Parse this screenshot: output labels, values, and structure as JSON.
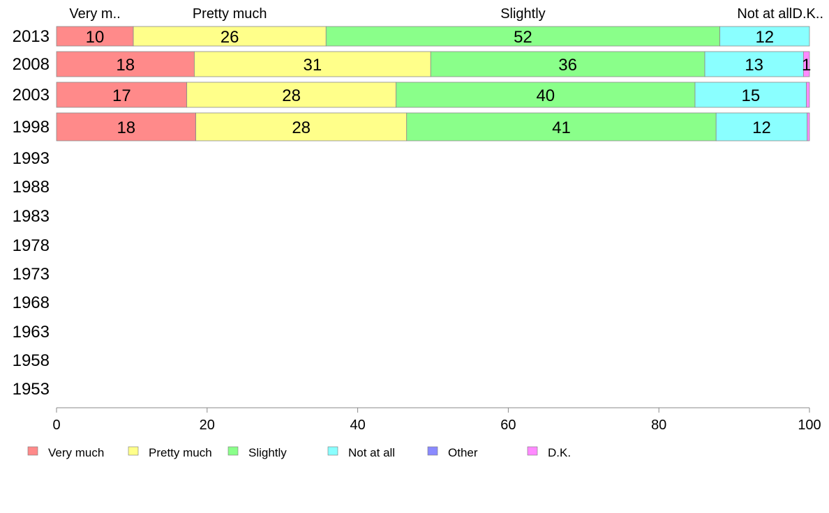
{
  "chart_data": {
    "type": "bar",
    "orientation": "horizontal",
    "stacked": true,
    "categories": [
      "2013",
      "2008",
      "2003",
      "1998",
      "1993",
      "1988",
      "1983",
      "1978",
      "1973",
      "1968",
      "1963",
      "1958",
      "1953"
    ],
    "series": [
      {
        "name": "Very much",
        "top_label": "Very m..",
        "color": "#ff8a8a",
        "values": [
          10.2,
          18.3,
          17.3,
          18.5,
          null,
          null,
          null,
          null,
          null,
          null,
          null,
          null,
          null
        ],
        "labels": [
          "10",
          "18",
          "17",
          "18"
        ]
      },
      {
        "name": "Pretty much",
        "top_label": "Pretty much",
        "color": "#ffff8a",
        "values": [
          25.6,
          31.4,
          27.8,
          28.0,
          null,
          null,
          null,
          null,
          null,
          null,
          null,
          null,
          null
        ],
        "labels": [
          "26",
          "31",
          "28",
          "28"
        ]
      },
      {
        "name": "Slightly",
        "top_label": "Slightly",
        "color": "#8aff8a",
        "values": [
          52.3,
          36.4,
          39.7,
          41.1,
          null,
          null,
          null,
          null,
          null,
          null,
          null,
          null,
          null
        ],
        "labels": [
          "52",
          "36",
          "40",
          "41"
        ]
      },
      {
        "name": "Not at all",
        "top_label": "Not at all",
        "color": "#8affff",
        "values": [
          11.9,
          13.1,
          14.8,
          12.1,
          null,
          null,
          null,
          null,
          null,
          null,
          null,
          null,
          null
        ],
        "labels": [
          "12",
          "13",
          "15",
          "12"
        ]
      },
      {
        "name": "Other",
        "top_label": "",
        "color": "#8a8aff",
        "values": [
          0,
          0,
          0,
          0,
          null,
          null,
          null,
          null,
          null,
          null,
          null,
          null,
          null
        ],
        "labels": [
          "",
          "",
          "",
          ""
        ]
      },
      {
        "name": "D.K.",
        "top_label": "D.K..",
        "color": "#ff8aff",
        "values": [
          0,
          0.8,
          0.4,
          0.3,
          null,
          null,
          null,
          null,
          null,
          null,
          null,
          null,
          null
        ],
        "labels": [
          "",
          "1",
          "",
          ""
        ]
      }
    ],
    "xlim": [
      0,
      100
    ],
    "xticks": [
      "0",
      "20",
      "40",
      "60",
      "80",
      "100"
    ],
    "xlabel": "",
    "ylabel": "",
    "title": "",
    "grid": false,
    "legend_position": "bottom"
  }
}
